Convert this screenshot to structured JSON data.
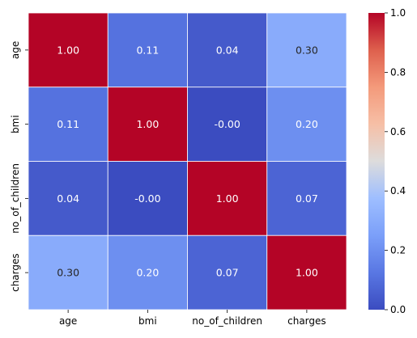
{
  "chart_data": {
    "type": "heatmap",
    "title": "",
    "xlabel": "",
    "ylabel": "",
    "x_labels": [
      "age",
      "bmi",
      "no_of_children",
      "charges"
    ],
    "y_labels": [
      "age",
      "bmi",
      "no_of_children",
      "charges"
    ],
    "values": [
      [
        1.0,
        0.11,
        0.04,
        0.3
      ],
      [
        0.11,
        1.0,
        -0.0,
        0.2
      ],
      [
        0.04,
        -0.0,
        1.0,
        0.07
      ],
      [
        0.3,
        0.2,
        0.07,
        1.0
      ]
    ],
    "cell_labels": [
      [
        "1.00",
        "0.11",
        "0.04",
        "0.30"
      ],
      [
        "0.11",
        "1.00",
        "-0.00",
        "0.20"
      ],
      [
        "0.04",
        "-0.00",
        "1.00",
        "0.07"
      ],
      [
        "0.30",
        "0.20",
        "0.07",
        "1.00"
      ]
    ],
    "colormap": "coolwarm",
    "vmin": 0.0,
    "vmax": 1.0,
    "colorbar_ticks": [
      "0.0",
      "0.2",
      "0.4",
      "0.6",
      "0.8",
      "1.0"
    ],
    "colorbar_tick_values": [
      0.0,
      0.2,
      0.4,
      0.6,
      0.8,
      1.0
    ],
    "cell_border_color": "#ffffff",
    "grid": false,
    "legend": "colorbar-right"
  }
}
